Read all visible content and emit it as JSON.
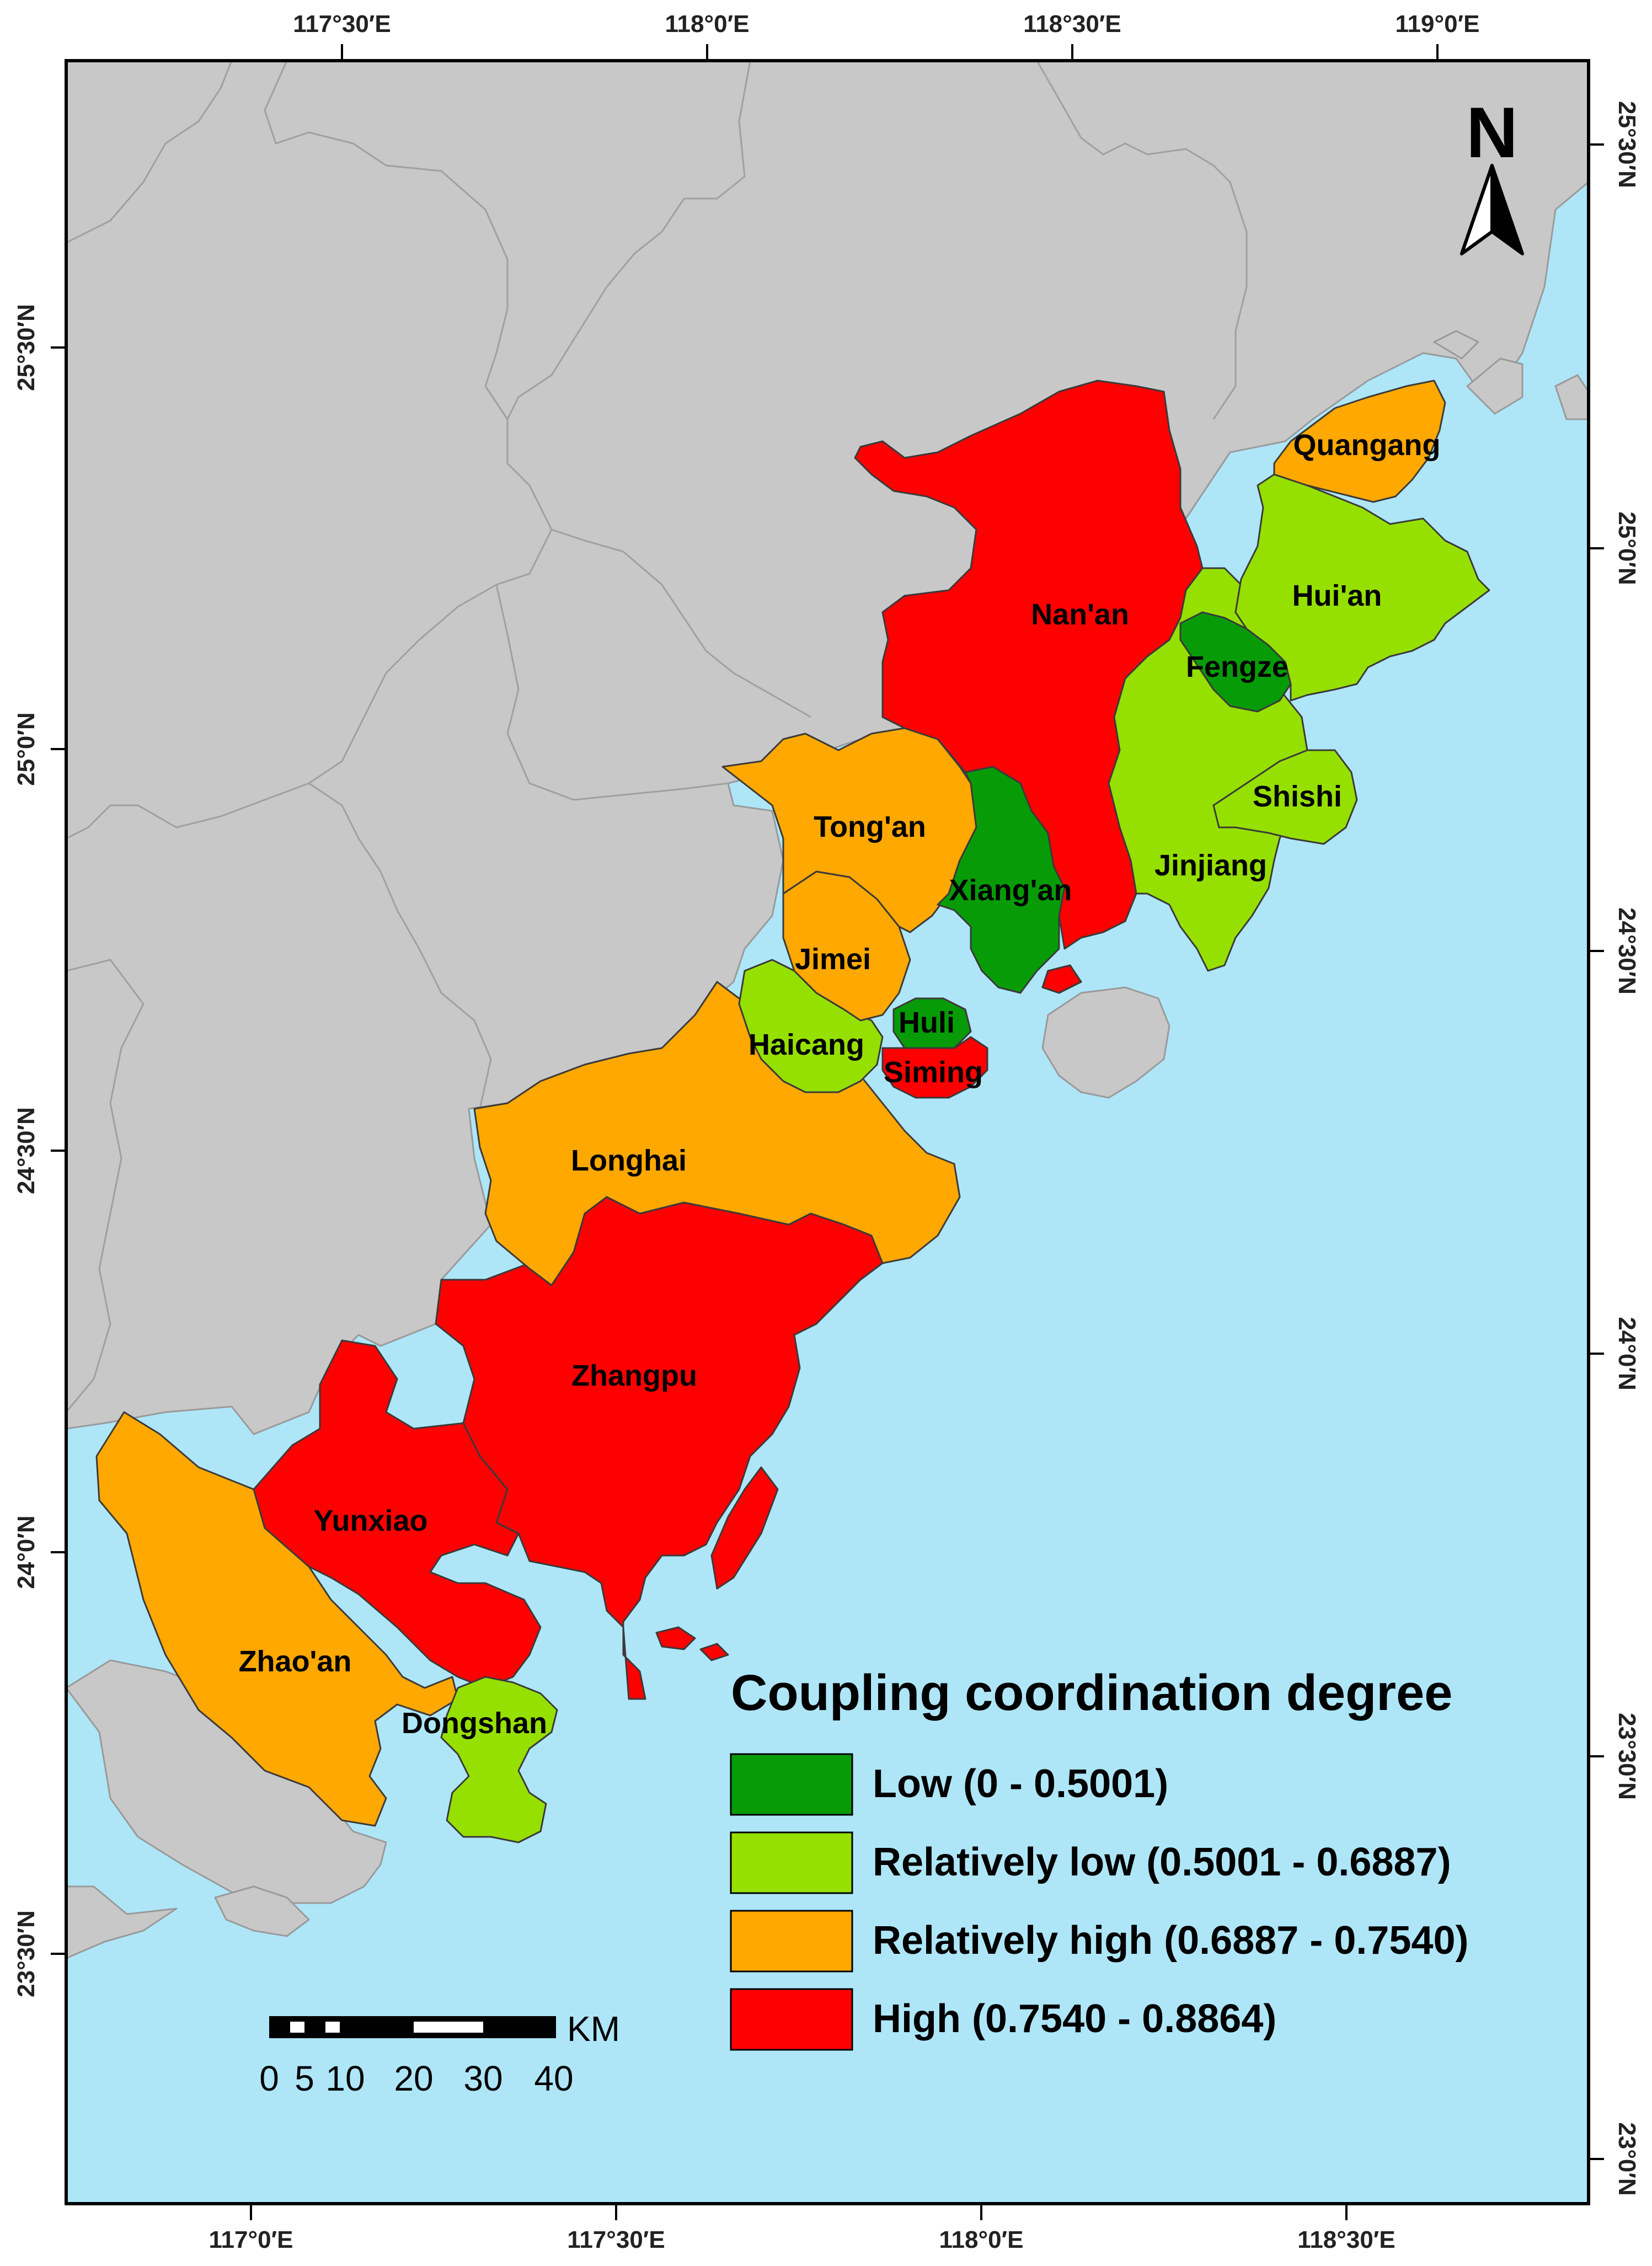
{
  "colors": {
    "sea": "#aee6f8",
    "land": "#c8c8c8",
    "low": "#079c07",
    "relatively_low": "#96e000",
    "relatively_high": "#ffa800",
    "high": "#ff0000"
  },
  "axes": {
    "top_ticks": [
      "117°30′E",
      "118°0′E",
      "118°30′E",
      "119°0′E"
    ],
    "bottom_ticks": [
      "117°0′E",
      "117°30′E",
      "118°0′E",
      "118°30′E"
    ],
    "left_ticks": [
      "25°30′N",
      "25°0′N",
      "24°30′N",
      "24°0′N",
      "23°30′N"
    ],
    "right_ticks": [
      "25°30′N",
      "25°0′N",
      "24°30′N",
      "24°0′N",
      "23°30′N",
      "23°0′N"
    ]
  },
  "regions": [
    {
      "name": "Quangang",
      "class": "relatively_high"
    },
    {
      "name": "Nan'an",
      "class": "high"
    },
    {
      "name": "Hui'an",
      "class": "relatively_low"
    },
    {
      "name": "Fengze",
      "class": "low"
    },
    {
      "name": "Shishi",
      "class": "relatively_low"
    },
    {
      "name": "Jinjiang",
      "class": "relatively_low"
    },
    {
      "name": "Tong'an",
      "class": "relatively_high"
    },
    {
      "name": "Xiang'an",
      "class": "low"
    },
    {
      "name": "Jimei",
      "class": "relatively_high"
    },
    {
      "name": "Haicang",
      "class": "relatively_low"
    },
    {
      "name": "Huli",
      "class": "low"
    },
    {
      "name": "Siming",
      "class": "high"
    },
    {
      "name": "Longhai",
      "class": "relatively_high"
    },
    {
      "name": "Zhangpu",
      "class": "high"
    },
    {
      "name": "Yunxiao",
      "class": "high"
    },
    {
      "name": "Zhao'an",
      "class": "relatively_high"
    },
    {
      "name": "Dongshan",
      "class": "relatively_low"
    }
  ],
  "legend": {
    "title": "Coupling coordination degree",
    "items": [
      {
        "label": "Low (0 - 0.5001)",
        "class": "low"
      },
      {
        "label": "Relatively low (0.5001 - 0.6887)",
        "class": "relatively_low"
      },
      {
        "label": "Relatively high (0.6887 - 0.7540)",
        "class": "relatively_high"
      },
      {
        "label": "High (0.7540 - 0.8864)",
        "class": "high"
      }
    ]
  },
  "scale_bar": {
    "unit": "KM",
    "labels": [
      "0",
      "5",
      "10",
      "20",
      "30",
      "40"
    ]
  },
  "north_arrow": {
    "letter": "N"
  }
}
